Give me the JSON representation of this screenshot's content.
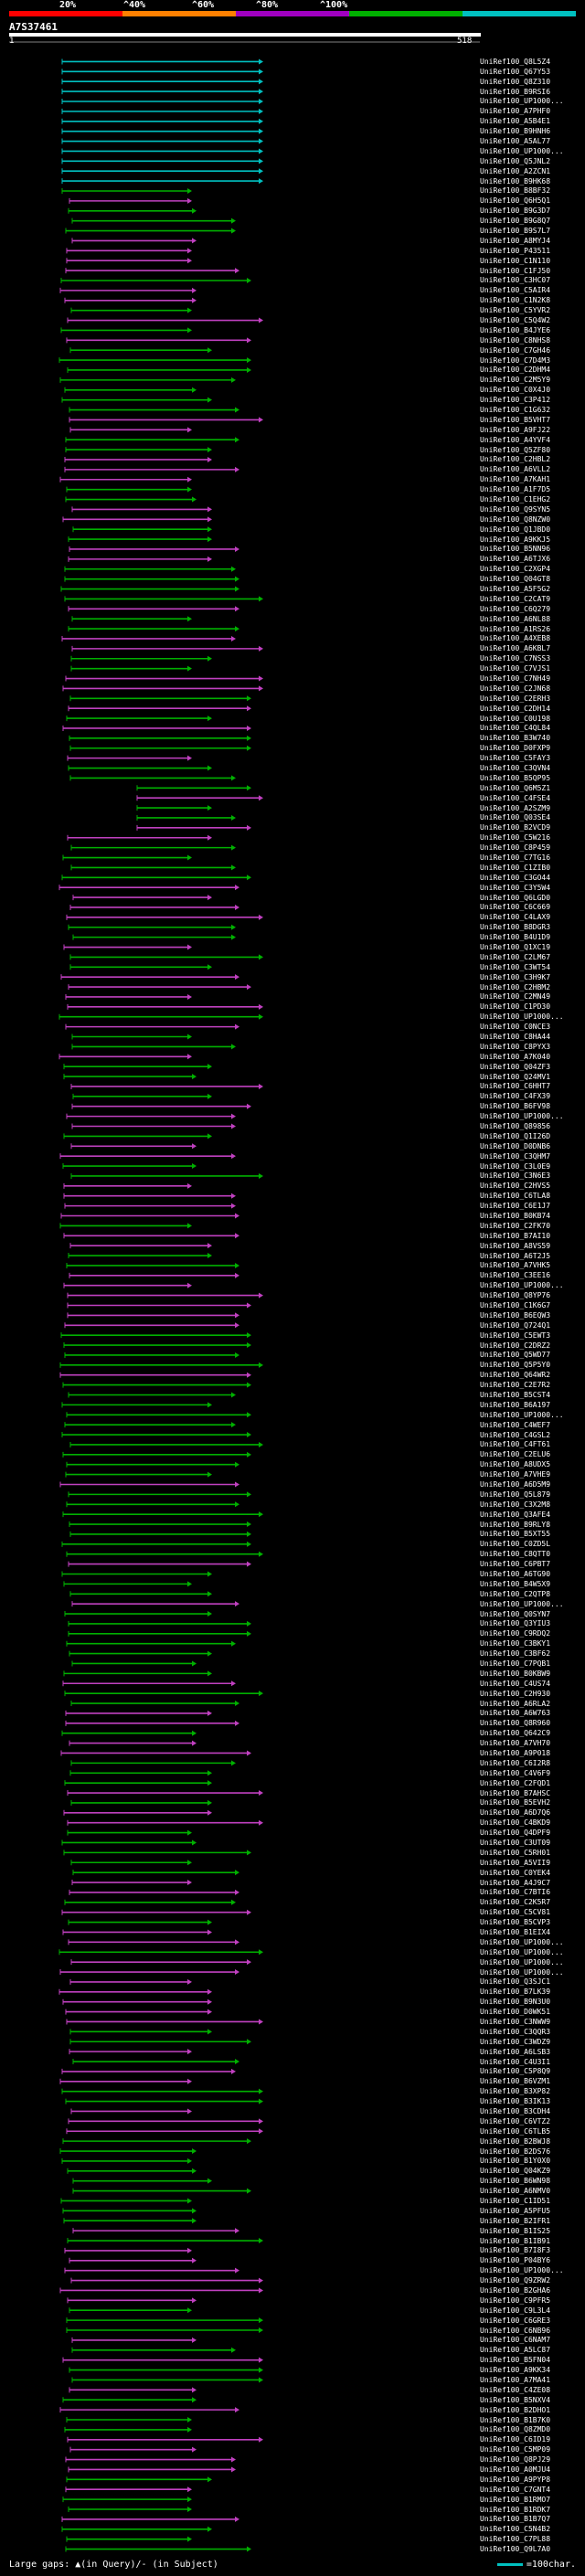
{
  "legend": {
    "labels": [
      {
        "text": "20%",
        "color": "#ff0000"
      },
      {
        "text": "^40%",
        "color": "#ff8000"
      },
      {
        "text": "^60%",
        "color": "#a000c0"
      },
      {
        "text": "^80%",
        "color": "#00b000"
      },
      {
        "text": "^100%",
        "color": "#00c0c0"
      }
    ]
  },
  "query_id": "A7S37461",
  "ruler": {
    "start": "1",
    "end": "518"
  },
  "footer": {
    "text": "Large gaps: ▲(in Query)/- (in Subject)",
    "scale": "=100char."
  },
  "hits": [
    "UniRef100_Q8L5Z4",
    "UniRef100_Q67Y53",
    "UniRef100_Q8Z310",
    "UniRef100_B9RSI6",
    "UniRef100_UP1000...",
    "UniRef100_A7PHF0",
    "UniRef100_A5B4E1",
    "UniRef100_B9HNH6",
    "UniRef100_A5AL77",
    "UniRef100_UP1000...",
    "UniRef100_Q5JNL2",
    "UniRef100_A2ZCN1",
    "UniRef100_B9HK68",
    "UniRef100_B8BF32",
    "UniRef100_Q6H5Q1",
    "UniRef100_B9G3D7",
    "UniRef100_B9G8Q7",
    "UniRef100_B9S7L7",
    "UniRef100_A8MYJ4",
    "UniRef100_P43511",
    "UniRef100_C1N110",
    "UniRef100_C1FJ50",
    "UniRef100_C3HC07",
    "UniRef100_C5AIR4",
    "UniRef100_C1N2K8",
    "UniRef100_C5YVR2",
    "UniRef100_C5Q4W2",
    "UniRef100_B4JYE6",
    "UniRef100_C8NHS8",
    "UniRef100_C7GH46",
    "UniRef100_C7D4M3",
    "UniRef100_C2DHM4",
    "UniRef100_C2M5Y9",
    "UniRef100_C0X4J0",
    "UniRef100_C3P412",
    "UniRef100_C1G632",
    "UniRef100_B5VHT7",
    "UniRef100_A9FJ22",
    "UniRef100_A4YVF4",
    "UniRef100_Q5ZF80",
    "UniRef100_C2HBL2",
    "UniRef100_A6VLL2",
    "UniRef100_A7KAH1",
    "UniRef100_A1F7D5",
    "UniRef100_C1EHG2",
    "UniRef100_Q9SYN5",
    "UniRef100_Q8NZW0",
    "UniRef100_Q1JBD0",
    "UniRef100_A9KKJ5",
    "UniRef100_B5NN96",
    "UniRef100_A6TJX6",
    "UniRef100_C2XGP4",
    "UniRef100_Q04GT8",
    "UniRef100_A5F5G2",
    "UniRef100_C2CAT9",
    "UniRef100_C6Q279",
    "UniRef100_A6NL88",
    "UniRef100_A1RS26",
    "UniRef100_A4XEB8",
    "UniRef100_A6KBL7",
    "UniRef100_C7NSS3",
    "UniRef100_C7VJS1",
    "UniRef100_C7NH49",
    "UniRef100_C2JN68",
    "UniRef100_C2ERH3",
    "UniRef100_C2DH14",
    "UniRef100_C0U198",
    "UniRef100_C4QL84",
    "UniRef100_B3W740",
    "UniRef100_D0FXP9",
    "UniRef100_C5FAY3",
    "UniRef100_C3QVN4",
    "UniRef100_B5QP95",
    "UniRef100_Q6M5Z1",
    "UniRef100_C4FSE4",
    "UniRef100_A2SZM9",
    "UniRef100_Q03SE4",
    "UniRef100_B2VCD9",
    "UniRef100_C5W216",
    "UniRef100_C8P459",
    "UniRef100_C7TG16",
    "UniRef100_C1ZIB0",
    "UniRef100_C3GO44",
    "UniRef100_C3Y5W4",
    "UniRef100_Q6LGD0",
    "UniRef100_C6C669",
    "UniRef100_C4LAX9",
    "UniRef100_B8DGR3",
    "UniRef100_B4U1D9",
    "UniRef100_Q1XC19",
    "UniRef100_C2LM67",
    "UniRef100_C3WT54",
    "UniRef100_C3H9K7",
    "UniRef100_C2HBM2",
    "UniRef100_C2MN49",
    "UniRef100_C1PD30",
    "UniRef100_UP1000...",
    "UniRef100_C0NCE3",
    "UniRef100_C8HA44",
    "UniRef100_C8PYX3",
    "UniRef100_A7K040",
    "UniRef100_Q04ZF3",
    "UniRef100_Q24MV1",
    "UniRef100_C6HHT7",
    "UniRef100_C4FX39",
    "UniRef100_B6FV98",
    "UniRef100_UP1000...",
    "UniRef100_Q89856",
    "UniRef100_Q1I26D",
    "UniRef100_D0DNB6",
    "UniRef100_C3QHM7",
    "UniRef100_C3L0E9",
    "UniRef100_C3N6E3",
    "UniRef100_C2HVS5",
    "UniRef100_C6TLA8",
    "UniRef100_C6E1J7",
    "UniRef100_B0KB74",
    "UniRef100_C2FK70",
    "UniRef100_B7AI10",
    "UniRef100_A8VS59",
    "UniRef100_A6T2J5",
    "UniRef100_A7VHK5",
    "UniRef100_C3EE16",
    "UniRef100_UP1000...",
    "UniRef100_Q8YP76",
    "UniRef100_C1K6G7",
    "UniRef100_B6EQW3",
    "UniRef100_Q724Q1",
    "UniRef100_C5EWT3",
    "UniRef100_C2DRZ2",
    "UniRef100_Q5WD77",
    "UniRef100_Q5P5Y0",
    "UniRef100_Q64WR2",
    "UniRef100_C2E7R2",
    "UniRef100_B5CST4",
    "UniRef100_B6A197",
    "UniRef100_UP1000...",
    "UniRef100_C4WEF7",
    "UniRef100_C4GSL2",
    "UniRef100_C4FT61",
    "UniRef100_C2ELU6",
    "UniRef100_A8UDX5",
    "UniRef100_A7VHE9",
    "UniRef100_A6D5M9",
    "UniRef100_Q5L879",
    "UniRef100_C3X2M8",
    "UniRef100_Q3AFE4",
    "UniRef100_B9RLY8",
    "UniRef100_B5XT55",
    "UniRef100_C0ZD5L",
    "UniRef100_C8QTT0",
    "UniRef100_C6PBT7",
    "UniRef100_A6TG90",
    "UniRef100_B4W5X9",
    "UniRef100_C2QTP8",
    "UniRef100_UP1000...",
    "UniRef100_Q0SYN7",
    "UniRef100_Q3YIU3",
    "UniRef100_C9RDQ2",
    "UniRef100_C3BKY1",
    "UniRef100_C3BF62",
    "UniRef100_C7PQB1",
    "UniRef100_B0KBW9",
    "UniRef100_C4US74",
    "UniRef100_C2H930",
    "UniRef100_A6RLA2",
    "UniRef100_A6W763",
    "UniRef100_Q8R960",
    "UniRef100_Q642C9",
    "UniRef100_A7VH70",
    "UniRef100_A9P018",
    "UniRef100_C6I2R8",
    "UniRef100_C4V6F9",
    "UniRef100_C2FQD1",
    "UniRef100_B7AHSC",
    "UniRef100_B5EVH2",
    "UniRef100_A6D7Q6",
    "UniRef100_C4BKD9",
    "UniRef100_Q4DPF9",
    "UniRef100_C3UT09",
    "UniRef100_C5RH01",
    "UniRef100_A5VII9",
    "UniRef100_C0YEK4",
    "UniRef100_A4J9C7",
    "UniRef100_C7BTI6",
    "UniRef100_C2K5R7",
    "UniRef100_C5CV81",
    "UniRef100_B5CVP3",
    "UniRef100_B1EIX4",
    "UniRef100_UP1000...",
    "UniRef100_UP1000...",
    "UniRef100_UP1000...",
    "UniRef100_UP1000...",
    "UniRef100_Q3SJC1",
    "UniRef100_B7LK39",
    "UniRef100_B9N3U0",
    "UniRef100_D0WK51",
    "UniRef100_C3NWW9",
    "UniRef100_C3QQR3",
    "UniRef100_C3WDZ9",
    "UniRef100_A6LSB3",
    "UniRef100_C4U3I1",
    "UniRef100_C5P8Q9",
    "UniRef100_B6VZM1",
    "UniRef100_B3XP82",
    "UniRef100_B3IK13",
    "UniRef100_B3CDH4",
    "UniRef100_C6VTZ2",
    "UniRef100_C6TLB5",
    "UniRef100_B2BWJ8",
    "UniRef100_B2DS76",
    "UniRef100_B1Y0X0",
    "UniRef100_Q04KZ9",
    "UniRef100_B6WN98",
    "UniRef100_A6NMV0",
    "UniRef100_C1ID51",
    "UniRef100_A5PFU5",
    "UniRef100_B2IFR1",
    "UniRef100_B1IS25",
    "UniRef100_B1IB91",
    "UniRef100_B7I8F3",
    "UniRef100_P04BY6",
    "UniRef100_UP1000...",
    "UniRef100_Q9ZRW2",
    "UniRef100_B2GHA6",
    "UniRef100_C9PFR5",
    "UniRef100_C9L3L4",
    "UniRef100_C6GRE3",
    "UniRef100_C6NB96",
    "UniRef100_C6NAM7",
    "UniRef100_A5LC87",
    "UniRef100_B5FN04",
    "UniRef100_A9KK34",
    "UniRef100_A7MA41",
    "UniRef100_C4ZE08",
    "UniRef100_B5NXV4",
    "UniRef100_B2DHO1",
    "UniRef100_B1B7K0",
    "UniRef100_Q8ZMD0",
    "UniRef100_C6ID19",
    "UniRef100_C5MP09",
    "UniRef100_Q8PJ29",
    "UniRef100_A0MJU4",
    "UniRef100_A9PYP8",
    "UniRef100_C7GNT4",
    "UniRef100_B1RMO7",
    "UniRef100_B1RDK7",
    "UniRef100_B1B7Q7",
    "UniRef100_C5N4B2",
    "UniRef100_C7PL88",
    "UniRef100_Q9L7A0"
  ]
}
